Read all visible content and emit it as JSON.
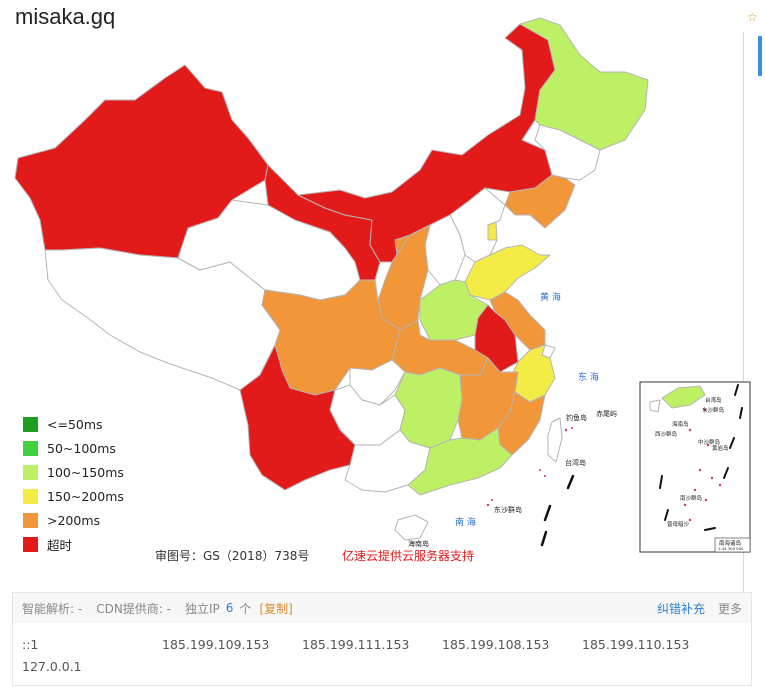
{
  "title": "misaka.gq",
  "legend": [
    {
      "label": "<=50ms",
      "color": "#1e9e1e"
    },
    {
      "label": "50~100ms",
      "color": "#3fd13f"
    },
    {
      "label": "100~150ms",
      "color": "#bef066"
    },
    {
      "label": "150~200ms",
      "color": "#f4ec46"
    },
    {
      "label": ">200ms",
      "color": "#f2963a"
    },
    {
      "label": "超时",
      "color": "#e31a1a"
    }
  ],
  "colors": {
    "timeout": "#e31a1a",
    "over200": "#f2963a",
    "r150_200": "#f4ec46",
    "r100_150": "#bef066",
    "no_data": "#ffffff",
    "border": "#b5b5b5",
    "sea_label": "#2a6fc9"
  },
  "map": {
    "caption": "审图号：GS（2018）738号",
    "sponsor": "亿速云提供云服务器支持",
    "sea_labels": [
      "黄 海",
      "东 海",
      "南 海"
    ],
    "island_labels": [
      "钓鱼岛",
      "赤尾屿",
      "台湾岛",
      "东沙群岛",
      "海南岛"
    ],
    "inset": {
      "labels": [
        "台湾岛",
        "东沙群岛",
        "西沙群岛",
        "海南岛",
        "黄岩岛",
        "中沙群岛",
        "南沙群岛",
        "曾母暗沙"
      ],
      "caption": "南海诸岛",
      "scale": "1:44 300 000"
    }
  },
  "info": {
    "smart_dns_label": "智能解析: -",
    "cdn_label": "CDN提供商: -",
    "ip_label": "独立IP",
    "ip_count": "6",
    "ip_unit": "个",
    "copy_label": "[复制]",
    "report_link": "纠错补充",
    "more_link": "更多"
  },
  "ips": [
    "::1",
    "185.199.109.153",
    "185.199.111.153",
    "185.199.108.153",
    "185.199.110.153",
    "127.0.0.1"
  ]
}
